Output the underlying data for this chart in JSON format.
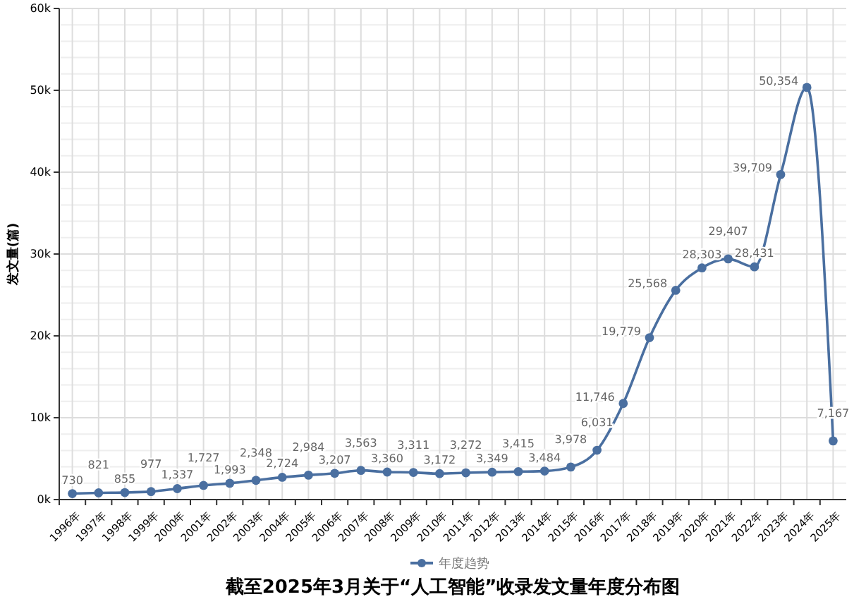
{
  "chart_data": {
    "type": "line",
    "title": "截至2025年3月关于“人工智能”收录发文量年度分布图",
    "ylabel": "发文量(篇)",
    "categories": [
      "1996年",
      "1997年",
      "1998年",
      "1999年",
      "2000年",
      "2001年",
      "2002年",
      "2003年",
      "2004年",
      "2005年",
      "2006年",
      "2007年",
      "2008年",
      "2009年",
      "2010年",
      "2011年",
      "2012年",
      "2013年",
      "2014年",
      "2015年",
      "2016年",
      "2017年",
      "2018年",
      "2019年",
      "2020年",
      "2021年",
      "2022年",
      "2023年",
      "2024年",
      "2025年"
    ],
    "series": [
      {
        "name": "年度趋势",
        "color": "#4a6fa0",
        "values": [
          730,
          821,
          855,
          977,
          1337,
          1727,
          1993,
          2348,
          2724,
          2984,
          3207,
          3563,
          3360,
          3311,
          3172,
          3272,
          3349,
          3415,
          3484,
          3978,
          6031,
          11746,
          19779,
          25568,
          28303,
          29407,
          28431,
          39709,
          50354,
          7167
        ]
      }
    ],
    "ylim": [
      0,
      60000
    ],
    "yticks": [
      {
        "value": 0,
        "label": "0k"
      },
      {
        "value": 10000,
        "label": "10k"
      },
      {
        "value": 20000,
        "label": "20k"
      },
      {
        "value": 30000,
        "label": "30k"
      },
      {
        "value": 40000,
        "label": "40k"
      },
      {
        "value": 50000,
        "label": "50k"
      },
      {
        "value": 60000,
        "label": "60k"
      }
    ],
    "value_labels": [
      "730",
      "821",
      "855",
      "977",
      "1,337",
      "1,727",
      "1,993",
      "2,348",
      "2,724",
      "2,984",
      "3,207",
      "3,563",
      "3,360",
      "3,311",
      "3,172",
      "3,272",
      "3,349",
      "3,415",
      "3,484",
      "3,978",
      "6,031",
      "11,746",
      "19,779",
      "25,568",
      "28,303",
      "29,407",
      "28,431",
      "39,709",
      "50,354",
      "7,167"
    ],
    "grid": true,
    "legend": "bottom",
    "marker": "circle",
    "line_style": "solid"
  }
}
